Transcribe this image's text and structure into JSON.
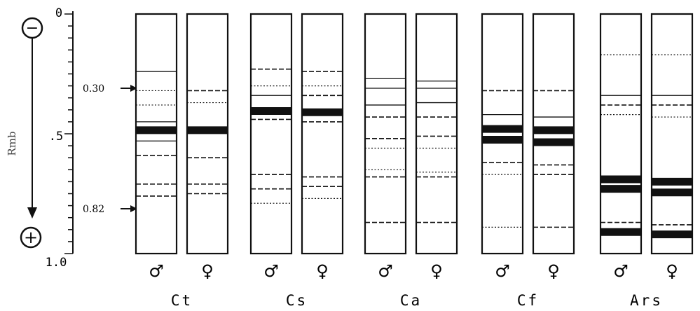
{
  "axis": {
    "title": "Rmb",
    "top_label": "0",
    "mid_label": ".5",
    "bottom_label": "1.0",
    "minus_sign": "−",
    "plus_sign": "+"
  },
  "markers": [
    {
      "label": "0.30",
      "value": 0.3
    },
    {
      "label": "0.82",
      "value": 0.82
    }
  ],
  "symbols": {
    "male": "♂",
    "female": "♀"
  },
  "species": [
    {
      "name": "Ct",
      "lanes": [
        {
          "sex": "male",
          "bands": [
            {
              "pos": 0.24,
              "type": "solid"
            },
            {
              "pos": 0.32,
              "type": "dotted"
            },
            {
              "pos": 0.38,
              "type": "dotted"
            },
            {
              "pos": 0.45,
              "type": "solid"
            },
            {
              "pos": 0.485,
              "type": "thick"
            },
            {
              "pos": 0.53,
              "type": "solid"
            },
            {
              "pos": 0.59,
              "type": "dashed"
            },
            {
              "pos": 0.71,
              "type": "dashed"
            },
            {
              "pos": 0.76,
              "type": "dashed"
            }
          ]
        },
        {
          "sex": "female",
          "bands": [
            {
              "pos": 0.32,
              "type": "dashed"
            },
            {
              "pos": 0.37,
              "type": "dotted"
            },
            {
              "pos": 0.485,
              "type": "thick"
            },
            {
              "pos": 0.6,
              "type": "dashed"
            },
            {
              "pos": 0.71,
              "type": "dashed"
            },
            {
              "pos": 0.75,
              "type": "dashed"
            }
          ]
        }
      ]
    },
    {
      "name": "Cs",
      "lanes": [
        {
          "sex": "male",
          "bands": [
            {
              "pos": 0.23,
              "type": "dashed"
            },
            {
              "pos": 0.3,
              "type": "dotted"
            },
            {
              "pos": 0.34,
              "type": "solid"
            },
            {
              "pos": 0.405,
              "type": "thick"
            },
            {
              "pos": 0.44,
              "type": "dashed"
            },
            {
              "pos": 0.67,
              "type": "dashed"
            },
            {
              "pos": 0.73,
              "type": "dashed"
            },
            {
              "pos": 0.79,
              "type": "dotted"
            }
          ]
        },
        {
          "sex": "female",
          "bands": [
            {
              "pos": 0.24,
              "type": "dashed"
            },
            {
              "pos": 0.3,
              "type": "dotted"
            },
            {
              "pos": 0.34,
              "type": "dashed"
            },
            {
              "pos": 0.41,
              "type": "thick"
            },
            {
              "pos": 0.45,
              "type": "dashed"
            },
            {
              "pos": 0.68,
              "type": "dashed"
            },
            {
              "pos": 0.72,
              "type": "dashed"
            },
            {
              "pos": 0.77,
              "type": "dotted"
            }
          ]
        }
      ]
    },
    {
      "name": "Ca",
      "lanes": [
        {
          "sex": "male",
          "bands": [
            {
              "pos": 0.27,
              "type": "solid"
            },
            {
              "pos": 0.31,
              "type": "solid"
            },
            {
              "pos": 0.38,
              "type": "solid"
            },
            {
              "pos": 0.43,
              "type": "dashed"
            },
            {
              "pos": 0.52,
              "type": "dashed"
            },
            {
              "pos": 0.56,
              "type": "dotted"
            },
            {
              "pos": 0.65,
              "type": "dotted"
            },
            {
              "pos": 0.68,
              "type": "dashed"
            },
            {
              "pos": 0.87,
              "type": "dashed"
            }
          ]
        },
        {
          "sex": "female",
          "bands": [
            {
              "pos": 0.28,
              "type": "solid"
            },
            {
              "pos": 0.31,
              "type": "solid"
            },
            {
              "pos": 0.37,
              "type": "solid"
            },
            {
              "pos": 0.43,
              "type": "dashed"
            },
            {
              "pos": 0.51,
              "type": "dashed"
            },
            {
              "pos": 0.56,
              "type": "dotted"
            },
            {
              "pos": 0.66,
              "type": "dotted"
            },
            {
              "pos": 0.68,
              "type": "dashed"
            },
            {
              "pos": 0.87,
              "type": "dashed"
            }
          ]
        }
      ]
    },
    {
      "name": "Cf",
      "lanes": [
        {
          "sex": "male",
          "bands": [
            {
              "pos": 0.32,
              "type": "dashed"
            },
            {
              "pos": 0.42,
              "type": "solid"
            },
            {
              "pos": 0.48,
              "type": "thick"
            },
            {
              "pos": 0.525,
              "type": "thick"
            },
            {
              "pos": 0.62,
              "type": "dashed"
            },
            {
              "pos": 0.67,
              "type": "dotted"
            },
            {
              "pos": 0.89,
              "type": "dotted"
            }
          ]
        },
        {
          "sex": "female",
          "bands": [
            {
              "pos": 0.32,
              "type": "dashed"
            },
            {
              "pos": 0.43,
              "type": "solid"
            },
            {
              "pos": 0.485,
              "type": "thick"
            },
            {
              "pos": 0.535,
              "type": "thick"
            },
            {
              "pos": 0.63,
              "type": "dashed"
            },
            {
              "pos": 0.67,
              "type": "dashed"
            },
            {
              "pos": 0.89,
              "type": "dashed"
            }
          ]
        }
      ]
    },
    {
      "name": "Ars",
      "lanes": [
        {
          "sex": "male",
          "bands": [
            {
              "pos": 0.17,
              "type": "dotted"
            },
            {
              "pos": 0.34,
              "type": "solid"
            },
            {
              "pos": 0.38,
              "type": "dashed"
            },
            {
              "pos": 0.42,
              "type": "dotted"
            },
            {
              "pos": 0.69,
              "type": "thick"
            },
            {
              "pos": 0.73,
              "type": "thick"
            },
            {
              "pos": 0.87,
              "type": "dashed"
            },
            {
              "pos": 0.91,
              "type": "thick"
            }
          ]
        },
        {
          "sex": "female",
          "bands": [
            {
              "pos": 0.17,
              "type": "dotted"
            },
            {
              "pos": 0.34,
              "type": "solid"
            },
            {
              "pos": 0.38,
              "type": "dashed"
            },
            {
              "pos": 0.43,
              "type": "dotted"
            },
            {
              "pos": 0.7,
              "type": "thick"
            },
            {
              "pos": 0.745,
              "type": "thick"
            },
            {
              "pos": 0.88,
              "type": "dashed"
            },
            {
              "pos": 0.92,
              "type": "thick"
            }
          ]
        }
      ]
    }
  ]
}
